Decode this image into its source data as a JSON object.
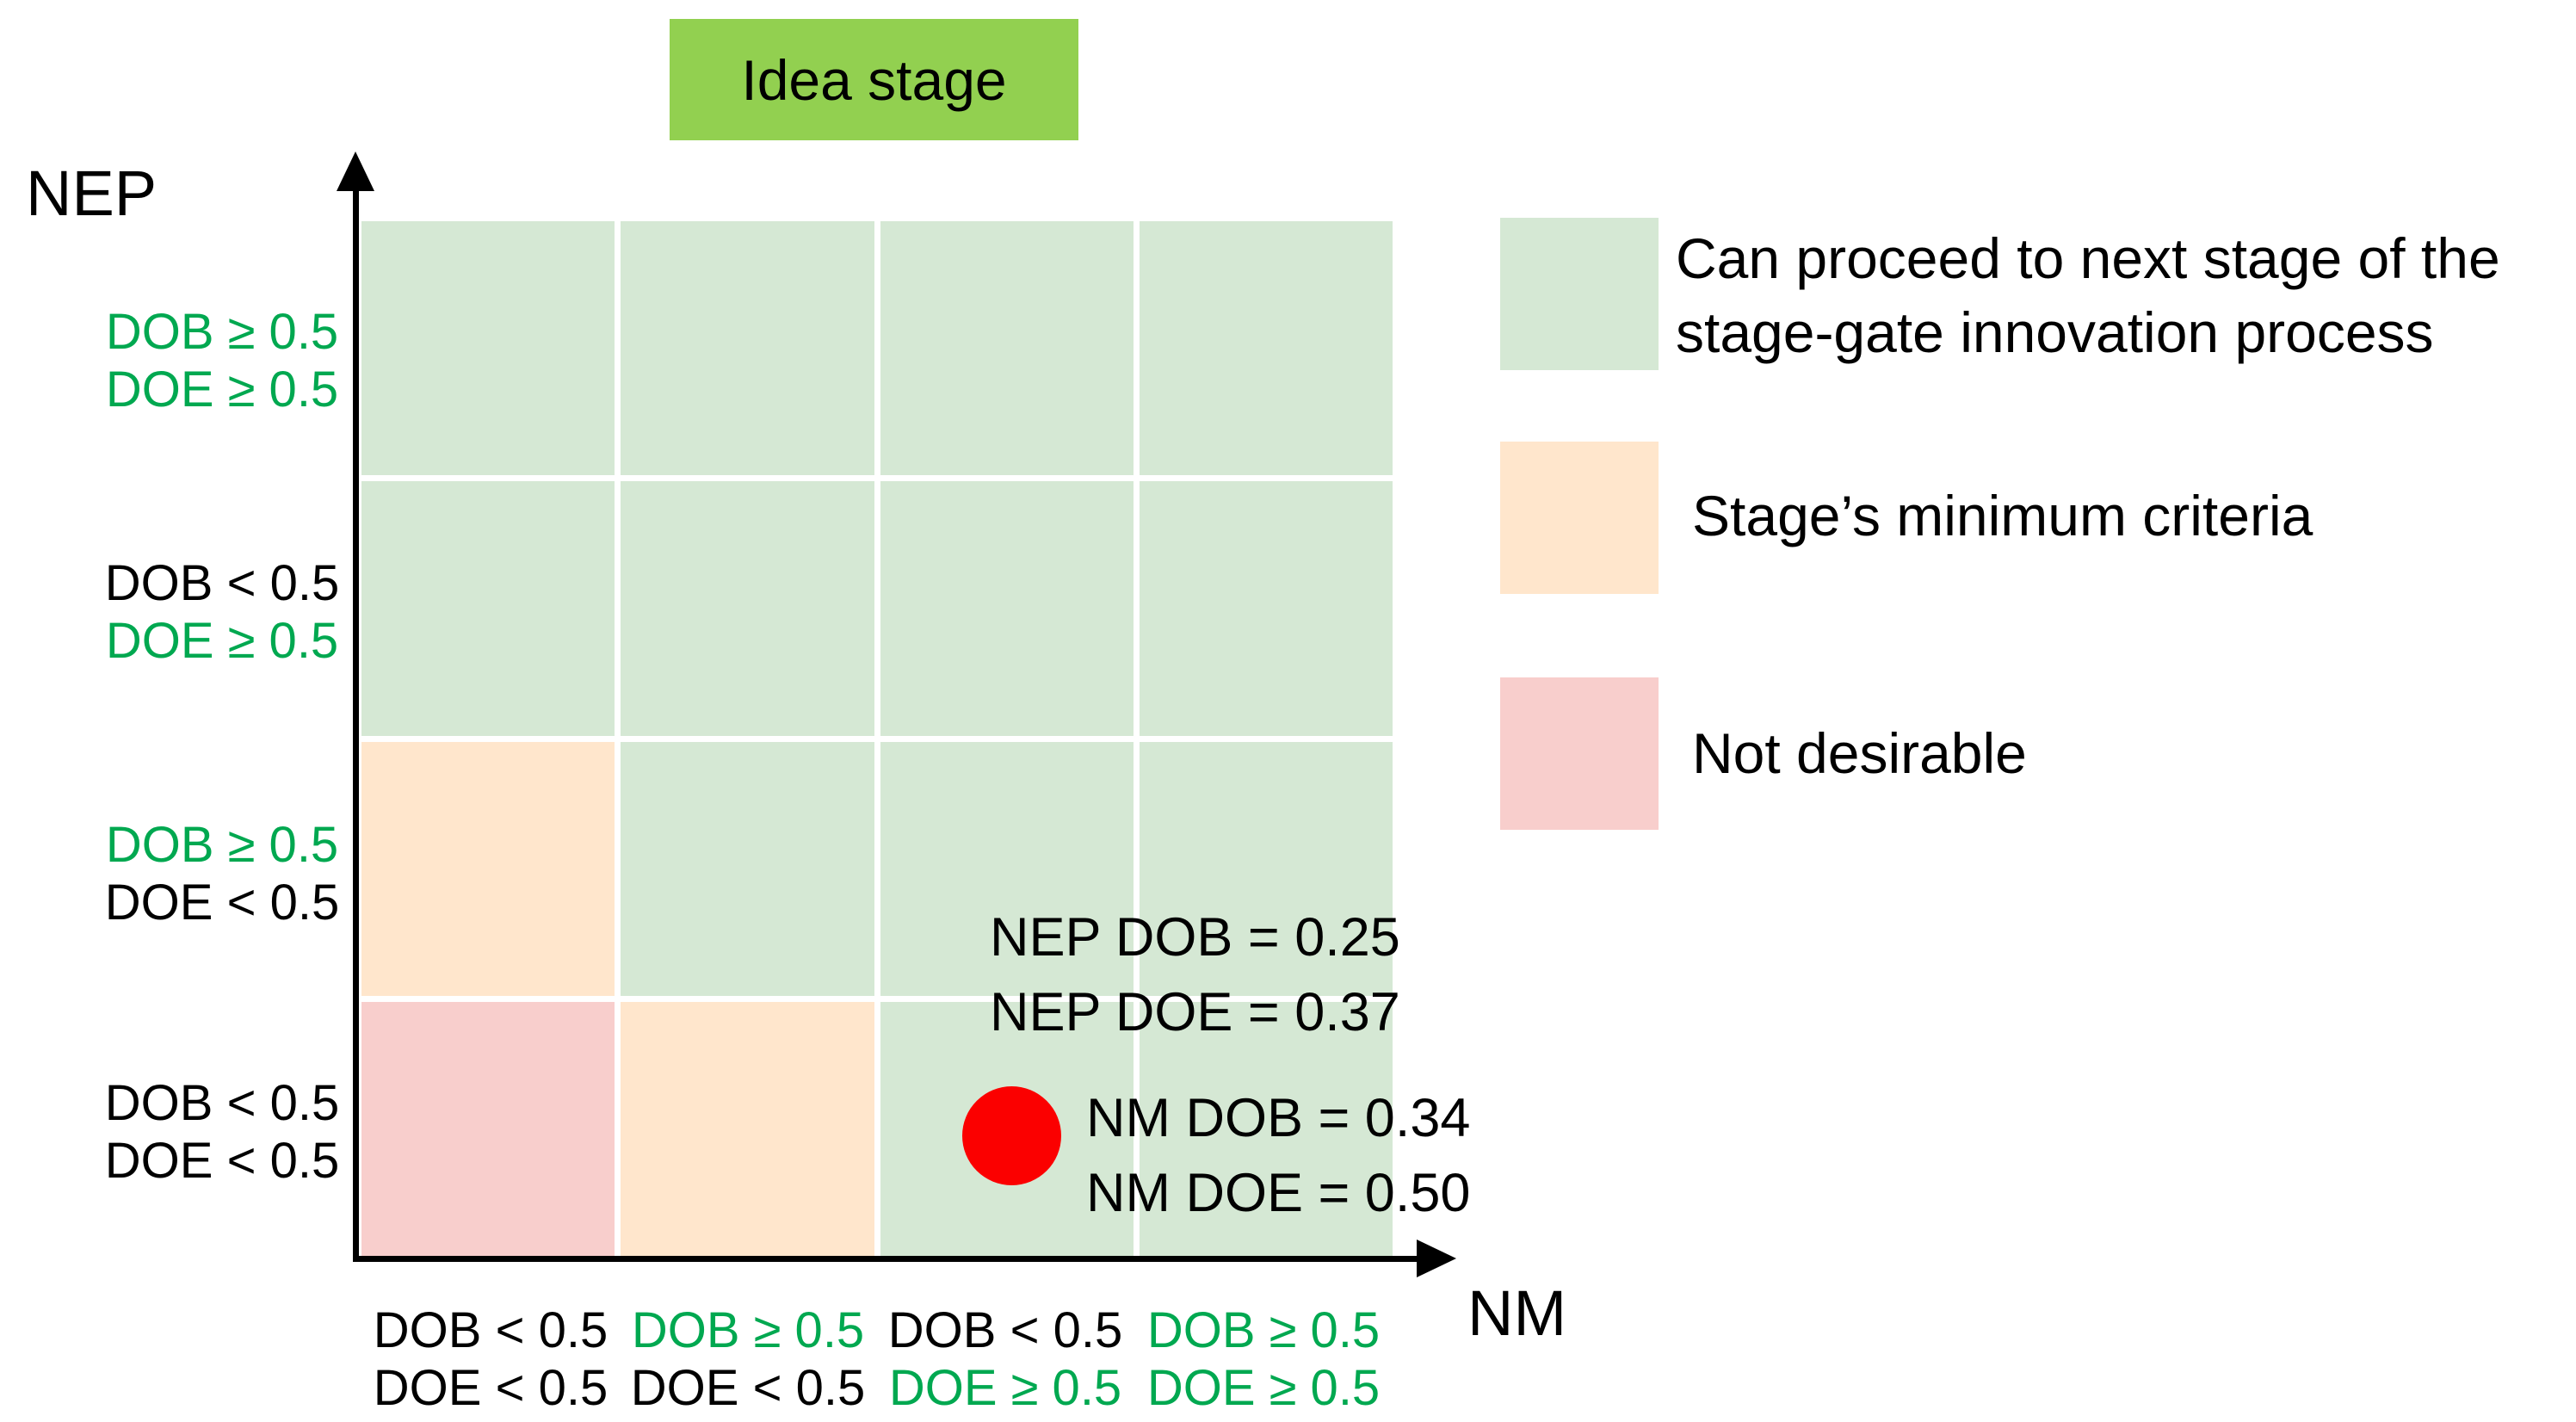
{
  "title": {
    "label": "Idea stage"
  },
  "axes": {
    "y": "NEP",
    "x": "NM"
  },
  "colors": {
    "cell_green": "#d5e8d4",
    "cell_orange": "#ffe6cc",
    "cell_pink": "#f8cecc",
    "title_bg": "#92d050",
    "green_text": "#00a850",
    "black_text": "#000000",
    "dot": "#fb0000"
  },
  "grid": {
    "rows": [
      [
        "green",
        "green",
        "green",
        "green"
      ],
      [
        "green",
        "green",
        "green",
        "green"
      ],
      [
        "orange",
        "green",
        "green",
        "green"
      ],
      [
        "pink",
        "orange",
        "green",
        "green"
      ]
    ]
  },
  "y_axis_labels": [
    {
      "lines": [
        {
          "text": "DOB ≥ 0.5",
          "green": true
        },
        {
          "text": "DOE ≥ 0.5",
          "green": true
        }
      ]
    },
    {
      "lines": [
        {
          "text": "DOB < 0.5",
          "green": false
        },
        {
          "text": "DOE ≥ 0.5",
          "green": true
        }
      ]
    },
    {
      "lines": [
        {
          "text": "DOB ≥ 0.5",
          "green": true
        },
        {
          "text": "DOE < 0.5",
          "green": false
        }
      ]
    },
    {
      "lines": [
        {
          "text": "DOB < 0.5",
          "green": false
        },
        {
          "text": "DOE < 0.5",
          "green": false
        }
      ]
    }
  ],
  "x_axis_labels": [
    {
      "lines": [
        {
          "text": "DOB < 0.5",
          "green": false
        },
        {
          "text": "DOE < 0.5",
          "green": false
        }
      ]
    },
    {
      "lines": [
        {
          "text": "DOB ≥ 0.5",
          "green": true
        },
        {
          "text": "DOE < 0.5",
          "green": false
        }
      ]
    },
    {
      "lines": [
        {
          "text": "DOB < 0.5",
          "green": false
        },
        {
          "text": "DOE ≥ 0.5",
          "green": true
        }
      ]
    },
    {
      "lines": [
        {
          "text": "DOB ≥ 0.5",
          "green": true
        },
        {
          "text": "DOE ≥ 0.5",
          "green": true
        }
      ]
    }
  ],
  "legend": {
    "items": [
      {
        "swatch": "cell_green",
        "lines": [
          "Can proceed to next stage of the",
          "stage-gate innovation process"
        ]
      },
      {
        "swatch": "cell_orange",
        "lines": [
          "Stage’s minimum criteria"
        ]
      },
      {
        "swatch": "cell_pink",
        "lines": [
          "Not desirable"
        ]
      }
    ]
  },
  "annotations": {
    "nep": {
      "line1": "NEP DOB = 0.25",
      "line2": "NEP DOE = 0.37"
    },
    "nm": {
      "line1": "NM DOB = 0.34",
      "line2": "NM DOE = 0.50"
    }
  }
}
